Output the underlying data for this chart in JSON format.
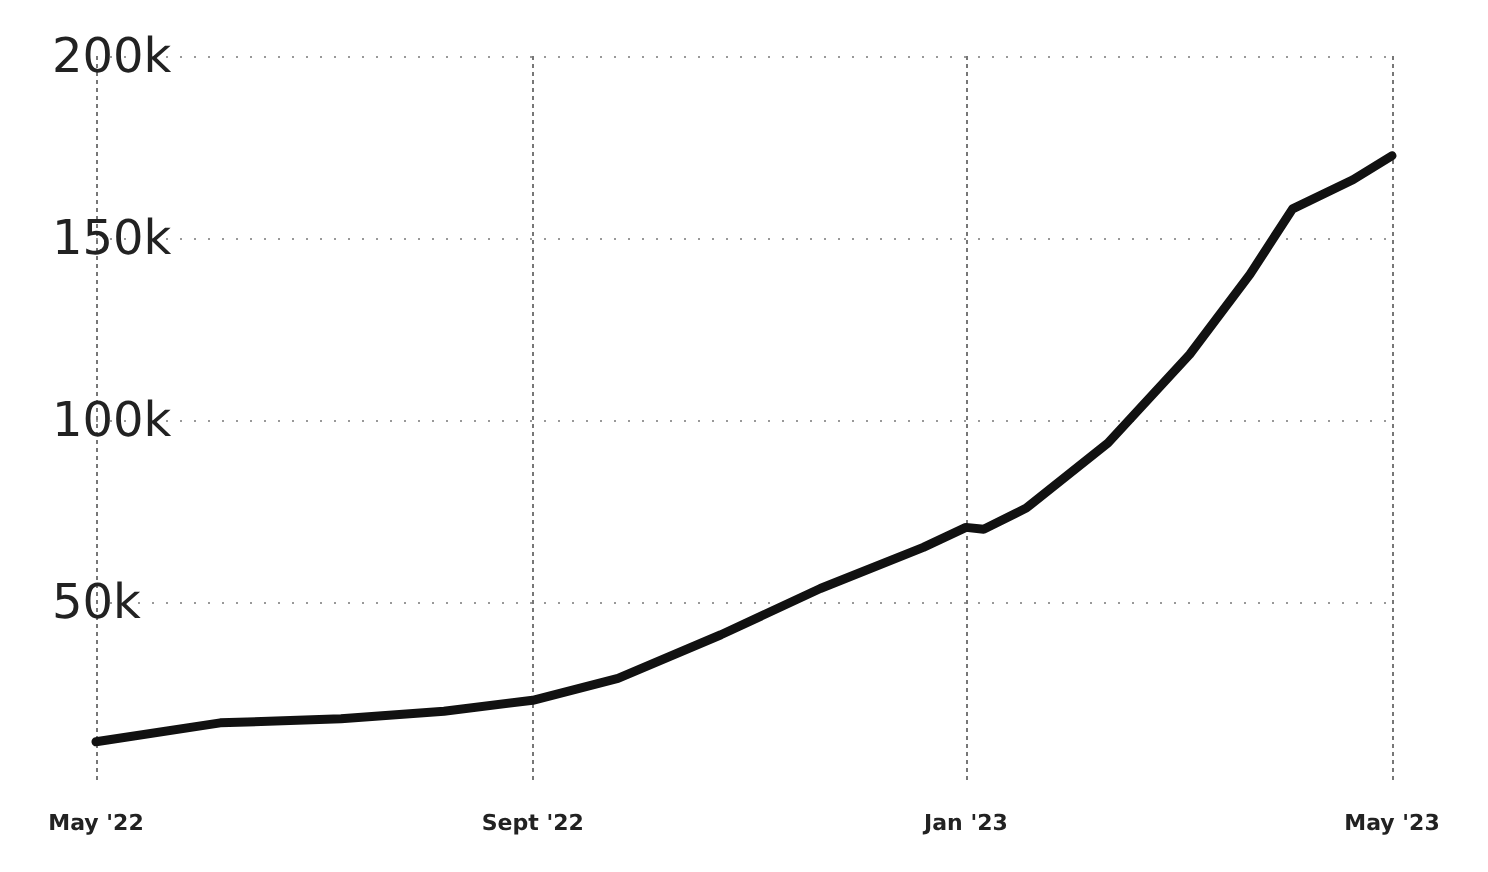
{
  "chart_data": {
    "type": "line",
    "x": [
      "2022-05-01",
      "2022-06-05",
      "2022-07-09",
      "2022-08-07",
      "2022-09-01",
      "2022-09-25",
      "2022-10-24",
      "2022-11-21",
      "2022-12-20",
      "2023-01-01",
      "2023-01-06",
      "2023-01-18",
      "2023-02-10",
      "2023-03-05",
      "2023-03-22",
      "2023-04-03",
      "2023-04-20",
      "2023-05-01"
    ],
    "series": [
      {
        "color": "#111111",
        "values": [
          11600,
          16800,
          17900,
          20000,
          23000,
          29000,
          41000,
          53700,
          65000,
          70500,
          70000,
          75800,
          93700,
          118000,
          140000,
          158000,
          166000,
          172600
        ]
      }
    ],
    "xlim": [
      "2022-05-01",
      "2023-05-01"
    ],
    "xticks": [
      {
        "value": "2022-05-01",
        "label": "May '22"
      },
      {
        "value": "2022-09-01",
        "label": "Sept '22"
      },
      {
        "value": "2023-01-01",
        "label": "Jan '23"
      },
      {
        "value": "2023-05-01",
        "label": "May '23"
      }
    ],
    "ylim": [
      0,
      200000
    ],
    "yticks": [
      {
        "value": 50000,
        "label": "50k"
      },
      {
        "value": 100000,
        "label": "100k"
      },
      {
        "value": 150000,
        "label": "150k"
      },
      {
        "value": 200000,
        "label": "200k"
      }
    ],
    "grid": true,
    "marker": "none",
    "line_style": "solid"
  }
}
